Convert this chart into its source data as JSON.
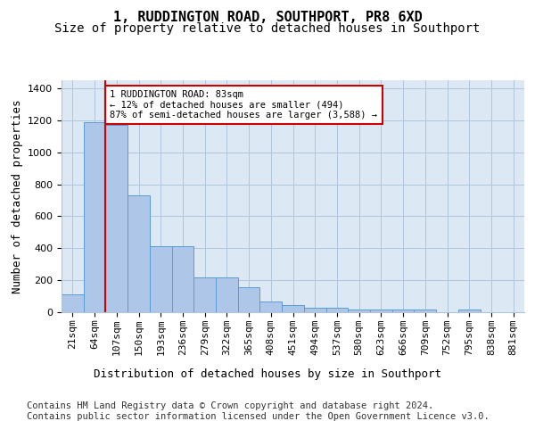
{
  "title": "1, RUDDINGTON ROAD, SOUTHPORT, PR8 6XD",
  "subtitle": "Size of property relative to detached houses in Southport",
  "xlabel": "Distribution of detached houses by size in Southport",
  "ylabel": "Number of detached properties",
  "categories": [
    "21sqm",
    "64sqm",
    "107sqm",
    "150sqm",
    "193sqm",
    "236sqm",
    "279sqm",
    "322sqm",
    "365sqm",
    "408sqm",
    "451sqm",
    "494sqm",
    "537sqm",
    "580sqm",
    "623sqm",
    "666sqm",
    "709sqm",
    "752sqm",
    "795sqm",
    "838sqm",
    "881sqm"
  ],
  "values": [
    110,
    1190,
    1170,
    730,
    415,
    415,
    215,
    215,
    155,
    65,
    45,
    28,
    28,
    17,
    14,
    14,
    14,
    0,
    14,
    0,
    0
  ],
  "bar_color": "#aec6e8",
  "bar_edge_color": "#5b9bd5",
  "red_line_color": "#cc0000",
  "annotation_text": "1 RUDDINGTON ROAD: 83sqm\n← 12% of detached houses are smaller (494)\n87% of semi-detached houses are larger (3,588) →",
  "annotation_box_color": "#ffffff",
  "annotation_box_edge_color": "#cc0000",
  "ylim": [
    0,
    1450
  ],
  "yticks": [
    0,
    200,
    400,
    600,
    800,
    1000,
    1200,
    1400
  ],
  "footer_text": "Contains HM Land Registry data © Crown copyright and database right 2024.\nContains public sector information licensed under the Open Government Licence v3.0.",
  "plot_bg_color": "#dce9f5",
  "title_fontsize": 11,
  "subtitle_fontsize": 10,
  "axis_label_fontsize": 9,
  "tick_fontsize": 8,
  "footer_fontsize": 7.5
}
